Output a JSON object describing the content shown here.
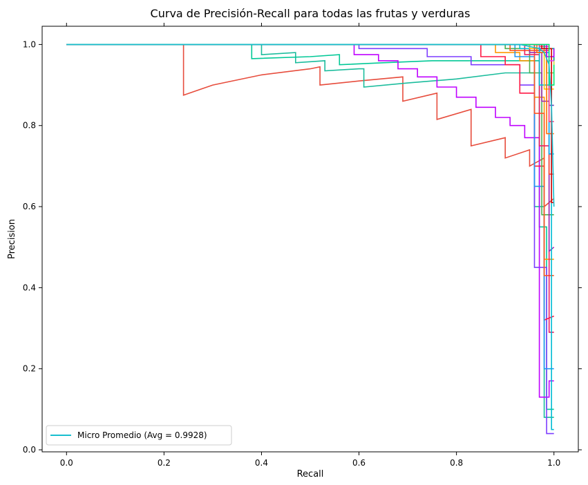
{
  "chart_data": {
    "type": "line",
    "title": "Curva de Precisión-Recall para todas las frutas y verduras",
    "xlabel": "Recall",
    "ylabel": "Precision",
    "xlim": [
      -0.05,
      1.05
    ],
    "ylim": [
      -0.005,
      1.045
    ],
    "x_ticks": [
      "0.0",
      "0.2",
      "0.4",
      "0.6",
      "0.8",
      "1.0"
    ],
    "y_ticks": [
      "0.0",
      "0.2",
      "0.4",
      "0.6",
      "0.8",
      "1.0"
    ],
    "ticks_on_all_sides": true,
    "grid": false,
    "legend": {
      "position": "lower-left",
      "entries": [
        {
          "label": "Micro Promedio (Avg = 0.9928)",
          "color": "#17becf"
        }
      ]
    },
    "series": [
      {
        "color": "#17becf",
        "points": [
          [
            0,
            1
          ],
          [
            0.93,
            1
          ],
          [
            0.95,
            0.995
          ],
          [
            0.97,
            0.99
          ],
          [
            0.98,
            0.98
          ],
          [
            0.99,
            0.95
          ],
          [
            0.995,
            0.85
          ],
          [
            1.0,
            0.6
          ]
        ]
      },
      {
        "color": "#e74c3c",
        "points": [
          [
            0,
            1
          ],
          [
            0.24,
            1
          ],
          [
            0.24,
            0.875
          ],
          [
            0.3,
            0.9
          ],
          [
            0.4,
            0.925
          ],
          [
            0.5,
            0.94
          ],
          [
            0.52,
            0.945
          ],
          [
            0.52,
            0.9
          ],
          [
            0.6,
            0.91
          ],
          [
            0.69,
            0.92
          ],
          [
            0.69,
            0.86
          ],
          [
            0.76,
            0.88
          ],
          [
            0.76,
            0.815
          ],
          [
            0.83,
            0.84
          ],
          [
            0.83,
            0.75
          ],
          [
            0.9,
            0.77
          ],
          [
            0.9,
            0.72
          ],
          [
            0.95,
            0.74
          ],
          [
            0.95,
            0.7
          ],
          [
            0.98,
            0.72
          ],
          [
            0.98,
            0.6
          ],
          [
            1.0,
            0.62
          ]
        ]
      },
      {
        "color": "#1abc9c",
        "points": [
          [
            0,
            1
          ],
          [
            0.4,
            1
          ],
          [
            0.4,
            0.975
          ],
          [
            0.47,
            0.98
          ],
          [
            0.47,
            0.955
          ],
          [
            0.53,
            0.96
          ],
          [
            0.53,
            0.935
          ],
          [
            0.6,
            0.94
          ],
          [
            0.61,
            0.94
          ],
          [
            0.61,
            0.895
          ],
          [
            0.7,
            0.905
          ],
          [
            0.8,
            0.915
          ],
          [
            0.9,
            0.93
          ],
          [
            0.96,
            0.93
          ],
          [
            0.96,
            0.6
          ],
          [
            0.98,
            0.6
          ],
          [
            0.98,
            0.08
          ],
          [
            1.0,
            0.08
          ]
        ]
      },
      {
        "color": "#00c896",
        "points": [
          [
            0,
            1
          ],
          [
            0.38,
            1
          ],
          [
            0.38,
            0.965
          ],
          [
            0.5,
            0.97
          ],
          [
            0.56,
            0.975
          ],
          [
            0.56,
            0.95
          ],
          [
            0.65,
            0.955
          ],
          [
            0.75,
            0.96
          ],
          [
            0.9,
            0.96
          ],
          [
            0.97,
            0.96
          ],
          [
            0.97,
            0.55
          ],
          [
            0.985,
            0.55
          ],
          [
            0.985,
            0.1
          ],
          [
            1.0,
            0.1
          ]
        ]
      },
      {
        "color": "#bf00ff",
        "points": [
          [
            0,
            1
          ],
          [
            0.59,
            1
          ],
          [
            0.59,
            0.975
          ],
          [
            0.64,
            0.975
          ],
          [
            0.64,
            0.96
          ],
          [
            0.68,
            0.96
          ],
          [
            0.68,
            0.94
          ],
          [
            0.72,
            0.94
          ],
          [
            0.72,
            0.92
          ],
          [
            0.76,
            0.92
          ],
          [
            0.76,
            0.895
          ],
          [
            0.8,
            0.895
          ],
          [
            0.8,
            0.87
          ],
          [
            0.84,
            0.87
          ],
          [
            0.84,
            0.845
          ],
          [
            0.88,
            0.845
          ],
          [
            0.88,
            0.82
          ],
          [
            0.91,
            0.82
          ],
          [
            0.91,
            0.8
          ],
          [
            0.94,
            0.8
          ],
          [
            0.94,
            0.77
          ],
          [
            0.97,
            0.77
          ],
          [
            0.97,
            0.13
          ],
          [
            0.99,
            0.13
          ],
          [
            0.99,
            0.17
          ],
          [
            1.0,
            0.17
          ]
        ]
      },
      {
        "color": "#7d3cff",
        "points": [
          [
            0,
            1
          ],
          [
            0.6,
            1
          ],
          [
            0.6,
            0.99
          ],
          [
            0.74,
            0.99
          ],
          [
            0.74,
            0.97
          ],
          [
            0.83,
            0.97
          ],
          [
            0.83,
            0.95
          ],
          [
            0.93,
            0.95
          ],
          [
            0.93,
            0.9
          ],
          [
            0.96,
            0.9
          ],
          [
            0.96,
            0.45
          ],
          [
            0.985,
            0.45
          ],
          [
            0.985,
            0.04
          ],
          [
            1.0,
            0.04
          ]
        ]
      },
      {
        "color": "#ff1744",
        "points": [
          [
            0,
            1
          ],
          [
            0.85,
            1
          ],
          [
            0.85,
            0.97
          ],
          [
            0.9,
            0.97
          ],
          [
            0.9,
            0.95
          ],
          [
            0.93,
            0.95
          ],
          [
            0.93,
            0.88
          ],
          [
            0.96,
            0.88
          ],
          [
            0.96,
            0.7
          ],
          [
            0.98,
            0.7
          ],
          [
            0.98,
            0.32
          ],
          [
            1.0,
            0.33
          ]
        ]
      },
      {
        "color": "#ff9800",
        "points": [
          [
            0,
            1
          ],
          [
            0.88,
            1
          ],
          [
            0.88,
            0.98
          ],
          [
            0.93,
            0.98
          ],
          [
            0.93,
            0.96
          ],
          [
            0.96,
            0.96
          ],
          [
            0.96,
            0.87
          ],
          [
            0.98,
            0.87
          ],
          [
            0.98,
            0.47
          ],
          [
            1.0,
            0.47
          ]
        ]
      },
      {
        "color": "#2196f3",
        "points": [
          [
            0,
            1
          ],
          [
            0.92,
            1
          ],
          [
            0.92,
            0.97
          ],
          [
            0.96,
            0.97
          ],
          [
            0.96,
            0.65
          ],
          [
            0.98,
            0.65
          ],
          [
            0.98,
            0.2
          ],
          [
            1.0,
            0.2
          ]
        ]
      },
      {
        "color": "#4caf50",
        "points": [
          [
            0,
            1
          ],
          [
            0.9,
            1
          ],
          [
            0.9,
            0.99
          ],
          [
            0.95,
            0.99
          ],
          [
            0.95,
            0.93
          ],
          [
            0.975,
            0.93
          ],
          [
            0.975,
            0.58
          ],
          [
            1.0,
            0.58
          ]
        ]
      },
      {
        "color": "#ff5722",
        "points": [
          [
            0,
            1
          ],
          [
            0.91,
            1
          ],
          [
            0.91,
            0.985
          ],
          [
            0.96,
            0.985
          ],
          [
            0.96,
            0.83
          ],
          [
            0.98,
            0.83
          ],
          [
            0.98,
            0.43
          ],
          [
            1.0,
            0.43
          ]
        ]
      },
      {
        "color": "#e91e63",
        "points": [
          [
            0,
            1
          ],
          [
            0.94,
            1
          ],
          [
            0.94,
            0.975
          ],
          [
            0.97,
            0.975
          ],
          [
            0.97,
            0.75
          ],
          [
            0.99,
            0.75
          ],
          [
            0.99,
            0.29
          ],
          [
            1.0,
            0.29
          ]
        ]
      },
      {
        "color": "#9c27b0",
        "points": [
          [
            0,
            1
          ],
          [
            0.95,
            1
          ],
          [
            0.95,
            0.98
          ],
          [
            0.975,
            0.98
          ],
          [
            0.975,
            0.86
          ],
          [
            0.99,
            0.86
          ],
          [
            0.99,
            0.49
          ],
          [
            1.0,
            0.5
          ]
        ]
      },
      {
        "color": "#00bcd4",
        "points": [
          [
            0,
            1
          ],
          [
            0.93,
            1
          ],
          [
            0.93,
            0.99
          ],
          [
            0.97,
            0.99
          ],
          [
            0.97,
            0.9
          ],
          [
            0.995,
            0.9
          ],
          [
            0.995,
            0.05
          ],
          [
            1.0,
            0.05
          ]
        ]
      },
      {
        "color": "#8bc34a",
        "points": [
          [
            0,
            1
          ],
          [
            0.96,
            1
          ],
          [
            0.96,
            0.99
          ],
          [
            0.985,
            0.99
          ],
          [
            0.985,
            0.93
          ],
          [
            1.0,
            0.93
          ]
        ]
      },
      {
        "color": "#ffc107",
        "points": [
          [
            0,
            1
          ],
          [
            0.95,
            1
          ],
          [
            0.95,
            0.99
          ],
          [
            0.98,
            0.99
          ],
          [
            0.98,
            0.89
          ],
          [
            1.0,
            0.89
          ]
        ]
      },
      {
        "color": "#673ab7",
        "points": [
          [
            0,
            1
          ],
          [
            0.97,
            1
          ],
          [
            0.97,
            0.99
          ],
          [
            0.99,
            0.99
          ],
          [
            0.99,
            0.85
          ],
          [
            1.0,
            0.85
          ]
        ]
      },
      {
        "color": "#f44336",
        "points": [
          [
            0,
            1
          ],
          [
            0.96,
            1
          ],
          [
            0.96,
            0.985
          ],
          [
            0.99,
            0.985
          ],
          [
            0.99,
            0.68
          ],
          [
            1.0,
            0.68
          ]
        ]
      },
      {
        "color": "#03a9f4",
        "points": [
          [
            0,
            1
          ],
          [
            0.97,
            1
          ],
          [
            0.97,
            0.98
          ],
          [
            0.99,
            0.98
          ],
          [
            0.99,
            0.73
          ],
          [
            1.0,
            0.73
          ]
        ]
      },
      {
        "color": "#cddc39",
        "points": [
          [
            0,
            1
          ],
          [
            0.98,
            1
          ],
          [
            0.98,
            0.99
          ],
          [
            1.0,
            0.99
          ],
          [
            1.0,
            0.94
          ]
        ]
      },
      {
        "color": "#ff4081",
        "points": [
          [
            0,
            1
          ],
          [
            0.97,
            1
          ],
          [
            0.97,
            0.995
          ],
          [
            0.99,
            0.995
          ],
          [
            0.99,
            0.81
          ],
          [
            1.0,
            0.81
          ]
        ]
      },
      {
        "color": "#009688",
        "points": [
          [
            0,
            1
          ],
          [
            0.98,
            1
          ],
          [
            0.98,
            0.99
          ],
          [
            1.0,
            0.99
          ],
          [
            1.0,
            0.96
          ]
        ]
      },
      {
        "color": "#ff6d00",
        "points": [
          [
            0,
            1
          ],
          [
            0.965,
            1
          ],
          [
            0.965,
            0.98
          ],
          [
            0.985,
            0.98
          ],
          [
            0.985,
            0.78
          ],
          [
            1.0,
            0.78
          ]
        ]
      },
      {
        "color": "#aa00ff",
        "points": [
          [
            0,
            1
          ],
          [
            0.985,
            1
          ],
          [
            0.985,
            0.97
          ],
          [
            1.0,
            0.97
          ],
          [
            1.0,
            0.99
          ]
        ]
      },
      {
        "color": "#d50000",
        "points": [
          [
            0,
            1
          ],
          [
            0.975,
            1
          ],
          [
            0.975,
            0.99
          ],
          [
            0.995,
            0.99
          ],
          [
            0.995,
            0.61
          ],
          [
            1.0,
            0.61
          ]
        ]
      },
      {
        "color": "#e040fb",
        "points": [
          [
            0,
            1
          ],
          [
            0.99,
            1
          ],
          [
            0.99,
            0.96
          ],
          [
            1.0,
            0.96
          ]
        ]
      },
      {
        "color": "#00e676",
        "points": [
          [
            0,
            1
          ],
          [
            0.99,
            1
          ],
          [
            0.99,
            0.9
          ],
          [
            1.0,
            0.9
          ],
          [
            1.0,
            0.95
          ]
        ]
      }
    ]
  }
}
